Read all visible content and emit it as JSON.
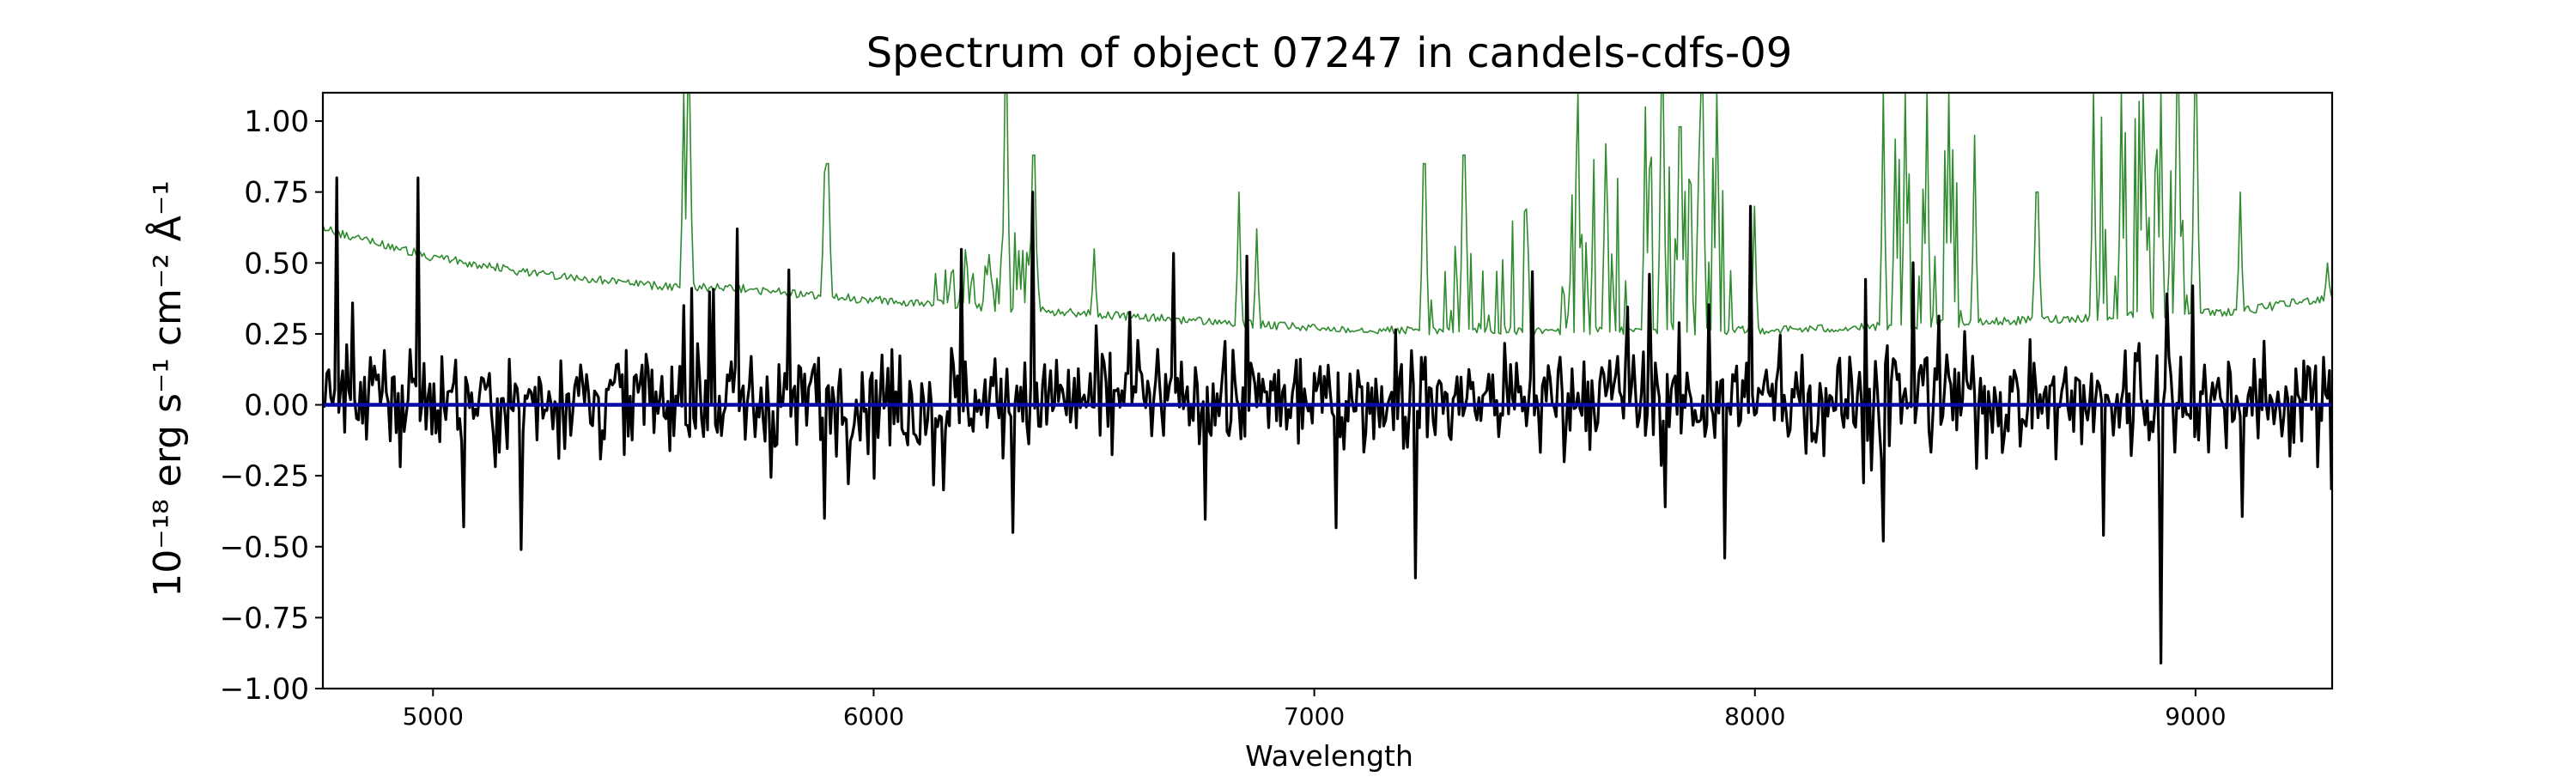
{
  "chart_data": {
    "type": "line",
    "title": "Spectrum of object 07247 in candels-cdfs-09",
    "xlabel": "Wavelength",
    "ylabel": "10⁻¹⁸ erg s⁻¹ cm⁻² Å⁻¹",
    "xlim": [
      4750,
      9310
    ],
    "ylim": [
      -1.0,
      1.1
    ],
    "x_ticks": [
      5000,
      6000,
      7000,
      8000,
      9000
    ],
    "y_ticks": [
      -1.0,
      -0.75,
      -0.5,
      -0.25,
      0.0,
      0.25,
      0.5,
      0.75,
      1.0
    ],
    "y_tick_labels": [
      "−1.00",
      "−0.75",
      "−0.50",
      "−0.25",
      "0.00",
      "0.25",
      "0.50",
      "0.75",
      "1.00"
    ],
    "grid": false,
    "series": [
      {
        "role": "noise",
        "color": "#2e8b2e",
        "line_width": "thin",
        "baseline": [
          [
            4750,
            0.62
          ],
          [
            4850,
            0.58
          ],
          [
            5000,
            0.52
          ],
          [
            5200,
            0.47
          ],
          [
            5500,
            0.42
          ],
          [
            5700,
            0.41
          ],
          [
            5900,
            0.38
          ],
          [
            6100,
            0.36
          ],
          [
            6400,
            0.33
          ],
          [
            6700,
            0.3
          ],
          [
            7000,
            0.27
          ],
          [
            7300,
            0.26
          ],
          [
            7600,
            0.26
          ],
          [
            7900,
            0.26
          ],
          [
            8200,
            0.27
          ],
          [
            8500,
            0.29
          ],
          [
            8800,
            0.31
          ],
          [
            9100,
            0.33
          ],
          [
            9310,
            0.38
          ]
        ],
        "jitter": 0.015,
        "spikes": [
          [
            5570,
            1.1
          ],
          [
            5580,
            1.1
          ],
          [
            5890,
            0.82
          ],
          [
            5895,
            0.85
          ],
          [
            6300,
            1.1
          ],
          [
            6363,
            0.88
          ],
          [
            6500,
            0.55
          ],
          [
            6830,
            0.75
          ],
          [
            6870,
            0.62
          ],
          [
            7250,
            0.85
          ],
          [
            7340,
            0.88
          ],
          [
            7600,
            1.1
          ],
          [
            7660,
            0.92
          ],
          [
            7750,
            1.05
          ],
          [
            7790,
            1.1
          ],
          [
            7830,
            0.98
          ],
          [
            7880,
            1.1
          ],
          [
            7915,
            1.1
          ],
          [
            8000,
            0.7
          ],
          [
            8290,
            1.1
          ],
          [
            8340,
            1.1
          ],
          [
            8390,
            1.1
          ],
          [
            8440,
            1.1
          ],
          [
            8500,
            0.95
          ],
          [
            8640,
            0.75
          ],
          [
            8770,
            1.1
          ],
          [
            8830,
            1.1
          ],
          [
            8880,
            1.1
          ],
          [
            8920,
            1.1
          ],
          [
            8960,
            1.1
          ],
          [
            9000,
            1.1
          ],
          [
            9100,
            0.75
          ],
          [
            9300,
            0.5
          ]
        ],
        "bands": [
          [
            [
              6140,
              6380
            ],
            0.62
          ],
          [
            [
              7260,
              7490
            ],
            0.7
          ],
          [
            [
              7560,
              7960
            ],
            0.88
          ],
          [
            [
              8280,
              8480
            ],
            0.95
          ],
          [
            [
              8760,
              9000
            ],
            1.1
          ]
        ]
      },
      {
        "role": "flux",
        "color": "#000000",
        "line_width": "thick",
        "continuum": 0.02,
        "scatter": 0.22,
        "extremes": [
          [
            4780,
            0.8
          ],
          [
            4965,
            0.8
          ],
          [
            5070,
            -0.43
          ],
          [
            5200,
            -0.51
          ],
          [
            5570,
            0.35
          ],
          [
            5890,
            -0.4
          ],
          [
            6360,
            0.75
          ],
          [
            7230,
            -0.61
          ],
          [
            7930,
            -0.54
          ],
          [
            7990,
            0.7
          ],
          [
            8290,
            -0.48
          ],
          [
            8790,
            -0.46
          ],
          [
            8920,
            -0.91
          ],
          [
            9310,
            -0.3
          ]
        ]
      },
      {
        "role": "zero",
        "color": "#0a0aa8",
        "line_width": "thick",
        "y": 0.0
      }
    ]
  }
}
